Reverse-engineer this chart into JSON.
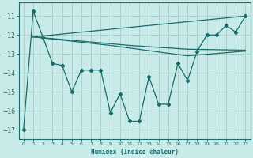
{
  "xlabel": "Humidex (Indice chaleur)",
  "bg_color": "#c8eae8",
  "line_color": "#1a6b6b",
  "grid_color": "#b0d8d4",
  "xlim": [
    -0.5,
    23.5
  ],
  "ylim": [
    -17.5,
    -10.3
  ],
  "yticks": [
    -17,
    -16,
    -15,
    -14,
    -13,
    -12,
    -11
  ],
  "xticks": [
    0,
    1,
    2,
    3,
    4,
    5,
    6,
    7,
    8,
    9,
    10,
    11,
    12,
    13,
    14,
    15,
    16,
    17,
    18,
    19,
    20,
    21,
    22,
    23
  ],
  "jagged_x": [
    0,
    1,
    2,
    3,
    4,
    5,
    6,
    7,
    8,
    9,
    10,
    11,
    12,
    13,
    14,
    15,
    16,
    17,
    18,
    19,
    20,
    21,
    22,
    23
  ],
  "jagged_y": [
    -17.0,
    -10.75,
    -12.1,
    -13.5,
    -13.6,
    -15.0,
    -13.85,
    -13.85,
    -13.85,
    -16.1,
    -15.1,
    -16.55,
    -16.55,
    -14.2,
    -15.65,
    -15.65,
    -13.5,
    -14.4,
    -12.85,
    -12.0,
    -12.0,
    -11.5,
    -11.85,
    -11.0
  ],
  "line1_x": [
    1,
    23
  ],
  "line1_y": [
    -12.1,
    -11.0
  ],
  "line2_x": [
    1,
    11,
    17,
    23
  ],
  "line2_y": [
    -12.1,
    -12.55,
    -12.75,
    -12.8
  ],
  "line3_x": [
    1,
    9,
    17,
    23
  ],
  "line3_y": [
    -12.1,
    -12.55,
    -13.1,
    -12.85
  ]
}
